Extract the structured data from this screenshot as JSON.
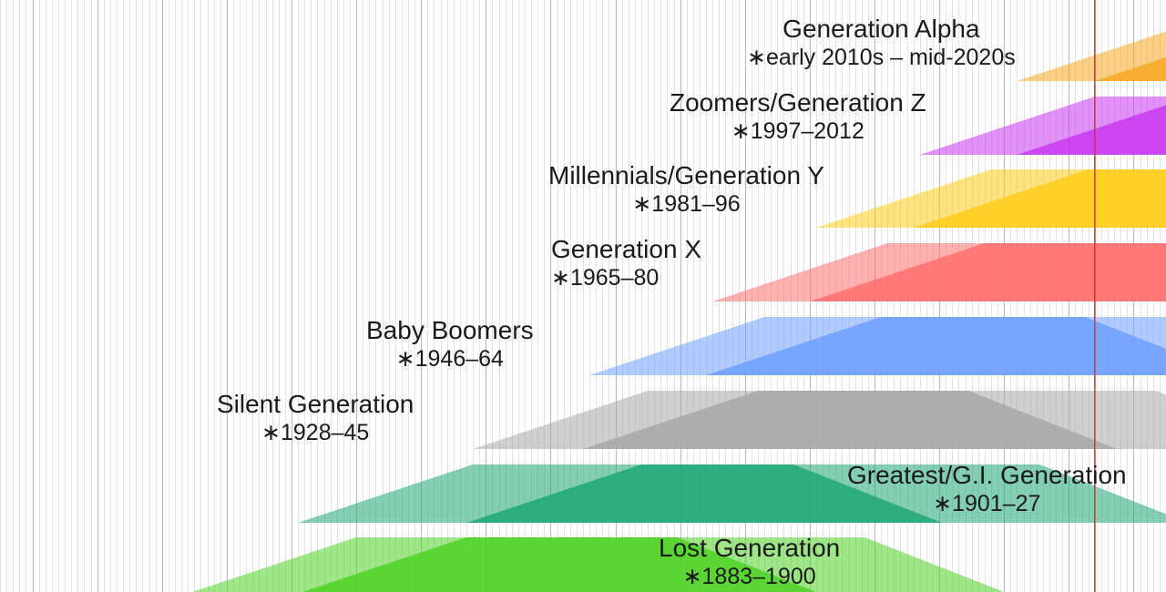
{
  "chart_data": {
    "type": "timeline",
    "title": "",
    "current_year": 2024,
    "xlim": [
      1855,
      2035
    ],
    "minor_grid_step": 1,
    "major_grid_step": 10,
    "series": [
      {
        "name": "Generation Alpha",
        "years_label": "early 2010s – mid-2020s",
        "birth_start": 2012,
        "birth_end": 2024,
        "color": "#f9a825"
      },
      {
        "name": "Zoomers/Generation Z",
        "years_label": "1997–2012",
        "birth_start": 1997,
        "birth_end": 2012,
        "color": "#c839f0"
      },
      {
        "name": "Millennials/Generation Y",
        "years_label": "1981–96",
        "birth_start": 1981,
        "birth_end": 1996,
        "color": "#ffcc1a"
      },
      {
        "name": "Generation X",
        "years_label": "1965–80",
        "birth_start": 1965,
        "birth_end": 1980,
        "color": "#ff7070"
      },
      {
        "name": "Baby Boomers",
        "years_label": "1946–64",
        "birth_start": 1946,
        "birth_end": 1964,
        "color": "#6fa0ff"
      },
      {
        "name": "Silent Generation",
        "years_label": "1928–45",
        "birth_start": 1928,
        "birth_end": 1945,
        "color": "#a8a8a8"
      },
      {
        "name": "Greatest/G.I. Generation",
        "years_label": "1901–27",
        "birth_start": 1901,
        "birth_end": 1927,
        "color": "#1fa877"
      },
      {
        "name": "Lost Generation",
        "years_label": "1883–1900",
        "birth_start": 1883,
        "birth_end": 1900,
        "color": "#4fd126"
      }
    ]
  },
  "ui": {
    "birth_marker": "∗"
  }
}
